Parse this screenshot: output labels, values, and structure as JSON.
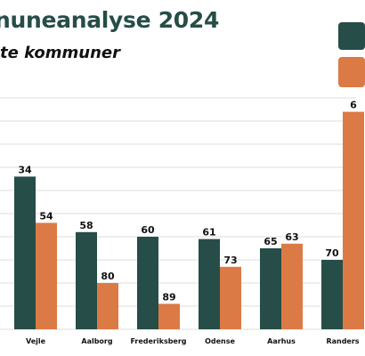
{
  "header": {
    "title": "nuneanalyse 2024",
    "subtitle": "te kommuner"
  },
  "colors": {
    "series_a": "#264d47",
    "series_b": "#dc7a45",
    "grid": "#dddddd",
    "title": "#264d47"
  },
  "chart_data": {
    "type": "bar",
    "categories": [
      "Vejle",
      "Aalborg",
      "Frederiksberg",
      "Odense",
      "Aarhus",
      "Randers"
    ],
    "series": [
      {
        "values": [
          34,
          58,
          60,
          61,
          65,
          70
        ],
        "color": "#264d47"
      },
      {
        "values": [
          54,
          80,
          89,
          73,
          63,
          6
        ],
        "color": "#dc7a45"
      }
    ],
    "bar_labels": [
      [
        "34",
        "58",
        "60",
        "61",
        "65",
        "70"
      ],
      [
        "54",
        "80",
        "89",
        "73",
        "63",
        "6"
      ]
    ],
    "ylim": [
      0,
      100
    ],
    "value_axis": "reversed (rank: lower value = taller bar)",
    "grid": true,
    "legend_position": "top-right"
  }
}
